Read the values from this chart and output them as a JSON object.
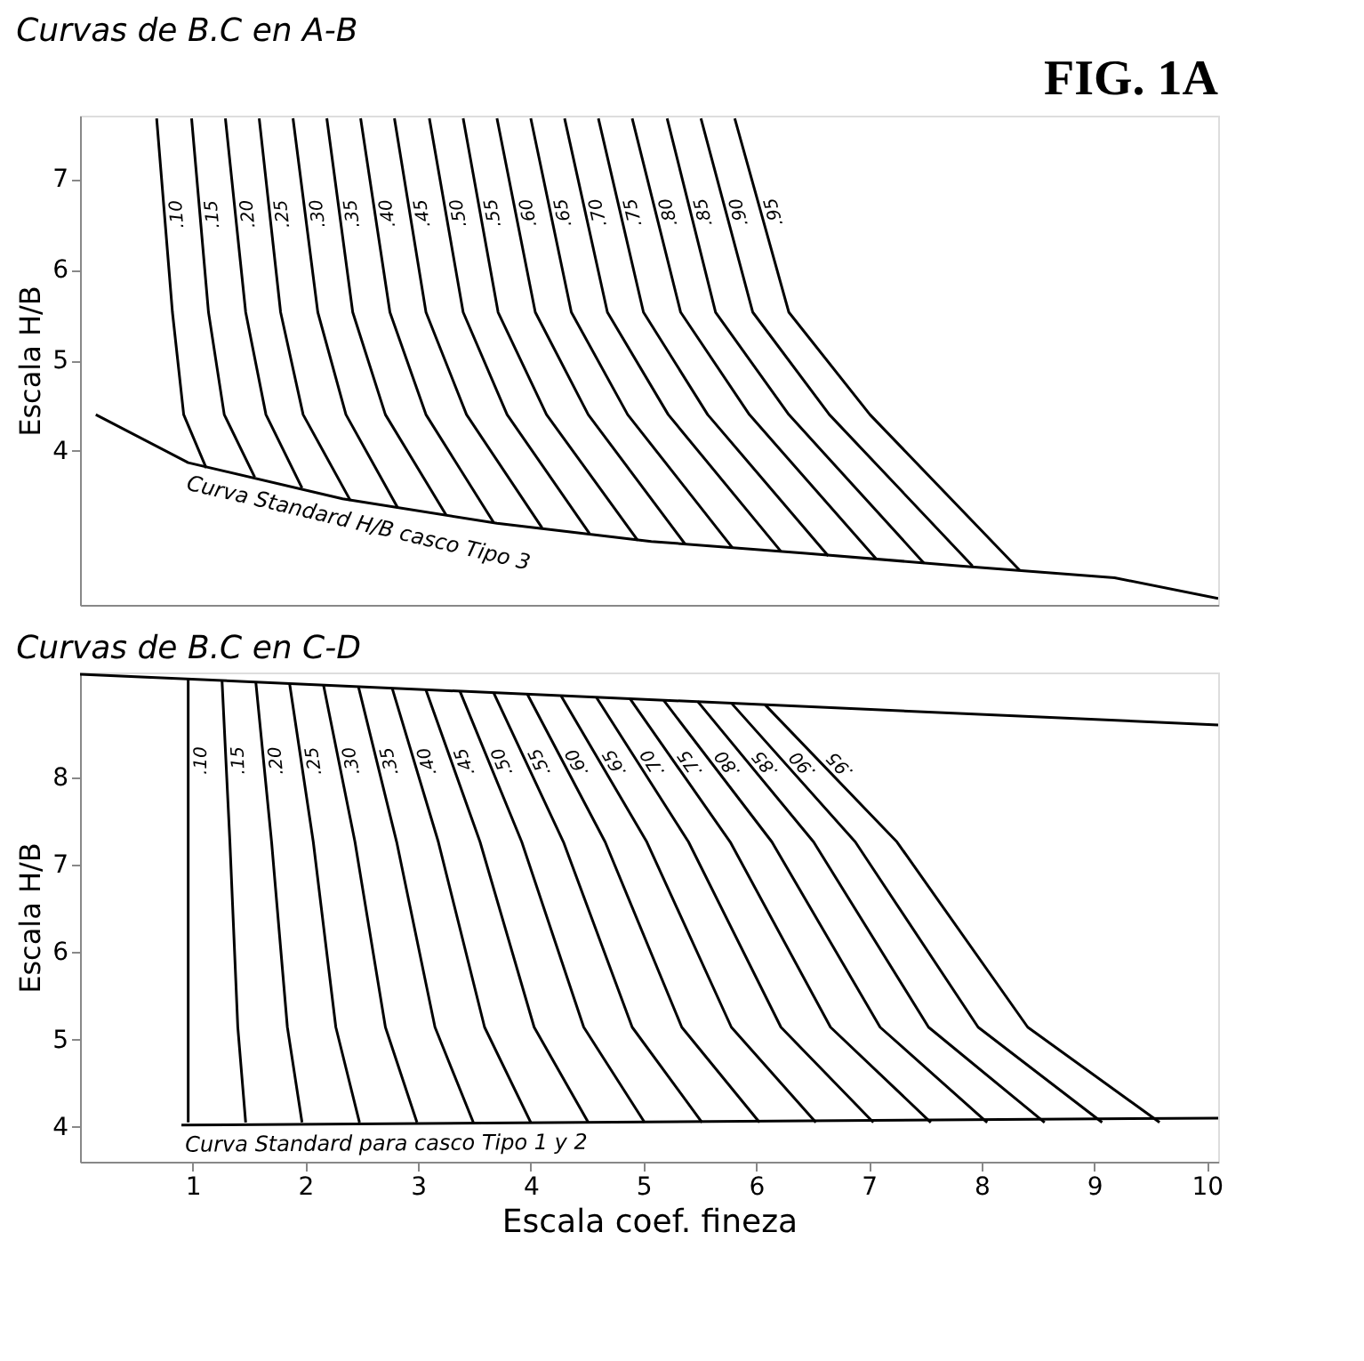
{
  "chart_data": [
    {
      "type": "line",
      "title": "Curvas de B.C en A-B",
      "ylabel": "Escala H/B",
      "annotations": [
        "FIG. 1A"
      ],
      "xlim": [
        0,
        10.1
      ],
      "ylim": [
        2.3,
        7.7
      ],
      "yticks": [
        4,
        5,
        6,
        7
      ],
      "tick_labels": "y",
      "grid": false,
      "legend": false,
      "marker": "none",
      "line_style": "solid",
      "series": [
        {
          "name": ".10",
          "color": "#000000",
          "x": [
            0.68,
            0.82,
            0.92,
            1.12
          ],
          "values": [
            7.67,
            5.53,
            4.4,
            3.81
          ]
        },
        {
          "name": ".15",
          "color": "#000000",
          "x": [
            0.99,
            1.14,
            1.28,
            1.55
          ],
          "values": [
            7.67,
            5.53,
            4.4,
            3.71
          ]
        },
        {
          "name": ".20",
          "color": "#000000",
          "x": [
            1.29,
            1.47,
            1.65,
            1.97
          ],
          "values": [
            7.67,
            5.53,
            4.4,
            3.59
          ]
        },
        {
          "name": ".25",
          "color": "#000000",
          "x": [
            1.59,
            1.78,
            1.98,
            2.4
          ],
          "values": [
            7.67,
            5.53,
            4.4,
            3.45
          ]
        },
        {
          "name": ".30",
          "color": "#000000",
          "x": [
            1.89,
            2.11,
            2.36,
            2.82
          ],
          "values": [
            7.67,
            5.53,
            4.4,
            3.37
          ]
        },
        {
          "name": ".35",
          "color": "#000000",
          "x": [
            2.19,
            2.42,
            2.71,
            3.25
          ],
          "values": [
            7.67,
            5.53,
            4.4,
            3.29
          ]
        },
        {
          "name": ".40",
          "color": "#000000",
          "x": [
            2.49,
            2.75,
            3.07,
            3.67
          ],
          "values": [
            7.67,
            5.53,
            4.4,
            3.21
          ]
        },
        {
          "name": ".45",
          "color": "#000000",
          "x": [
            2.79,
            3.07,
            3.43,
            4.1
          ],
          "values": [
            7.67,
            5.53,
            4.4,
            3.15
          ]
        },
        {
          "name": ".50",
          "color": "#000000",
          "x": [
            3.1,
            3.4,
            3.79,
            4.52
          ],
          "values": [
            7.67,
            5.53,
            4.4,
            3.09
          ]
        },
        {
          "name": ".55",
          "color": "#000000",
          "x": [
            3.4,
            3.71,
            4.14,
            4.95
          ],
          "values": [
            7.67,
            5.53,
            4.4,
            3.01
          ]
        },
        {
          "name": ".60",
          "color": "#000000",
          "x": [
            3.7,
            4.04,
            4.51,
            5.37
          ],
          "values": [
            7.67,
            5.53,
            4.4,
            2.97
          ]
        },
        {
          "name": ".65",
          "color": "#000000",
          "x": [
            4.0,
            4.36,
            4.86,
            5.79
          ],
          "values": [
            7.67,
            5.53,
            4.4,
            2.93
          ]
        },
        {
          "name": ".70",
          "color": "#000000",
          "x": [
            4.3,
            4.68,
            5.22,
            6.22
          ],
          "values": [
            7.67,
            5.53,
            4.4,
            2.89
          ]
        },
        {
          "name": ".75",
          "color": "#000000",
          "x": [
            4.6,
            5.0,
            5.57,
            6.64
          ],
          "values": [
            7.67,
            5.53,
            4.4,
            2.84
          ]
        },
        {
          "name": ".80",
          "color": "#000000",
          "x": [
            4.9,
            5.33,
            5.94,
            7.07
          ],
          "values": [
            7.67,
            5.53,
            4.4,
            2.8
          ]
        },
        {
          "name": ".85",
          "color": "#000000",
          "x": [
            5.21,
            5.64,
            6.29,
            7.49
          ],
          "values": [
            7.67,
            5.53,
            4.4,
            2.76
          ]
        },
        {
          "name": ".90",
          "color": "#000000",
          "x": [
            5.51,
            5.97,
            6.65,
            7.92
          ],
          "values": [
            7.67,
            5.53,
            4.4,
            2.73
          ]
        },
        {
          "name": ".95",
          "color": "#000000",
          "x": [
            5.81,
            6.29,
            7.01,
            8.34
          ],
          "values": [
            7.67,
            5.53,
            4.4,
            2.68
          ]
        },
        {
          "name": "Curva Standard H/B casco Tipo 3",
          "color": "#000000",
          "x": [
            0.14,
            0.96,
            2.33,
            3.7,
            5.07,
            6.44,
            7.81,
            9.18,
            10.1
          ],
          "values": [
            4.4,
            3.87,
            3.47,
            3.2,
            3.0,
            2.87,
            2.73,
            2.6,
            2.37
          ]
        }
      ]
    },
    {
      "type": "line",
      "title": "Curvas de B.C en C-D",
      "xlabel": "Escala coef. fineza",
      "ylabel": "Escala H/B",
      "xlim": [
        0,
        10.1
      ],
      "ylim": [
        3.6,
        9.2
      ],
      "xticks": [
        1,
        2,
        3,
        4,
        5,
        6,
        7,
        8,
        9,
        10
      ],
      "yticks": [
        4,
        5,
        6,
        7,
        8
      ],
      "grid": false,
      "legend": false,
      "marker": "none",
      "line_style": "solid",
      "series": [
        {
          "name": ".10",
          "color": "#000000",
          "x": [
            0.96,
            0.96,
            0.96,
            0.96
          ],
          "values": [
            9.12,
            7.26,
            5.14,
            4.05
          ]
        },
        {
          "name": ".15",
          "color": "#000000",
          "x": [
            1.26,
            1.33,
            1.4,
            1.47
          ],
          "values": [
            9.11,
            7.26,
            5.14,
            4.05
          ]
        },
        {
          "name": ".20",
          "color": "#000000",
          "x": [
            1.56,
            1.7,
            1.84,
            1.97
          ],
          "values": [
            9.09,
            7.26,
            5.14,
            4.05
          ]
        },
        {
          "name": ".25",
          "color": "#000000",
          "x": [
            1.86,
            2.07,
            2.27,
            2.48
          ],
          "values": [
            9.07,
            7.26,
            5.14,
            4.05
          ]
        },
        {
          "name": ".30",
          "color": "#000000",
          "x": [
            2.16,
            2.44,
            2.71,
            2.99
          ],
          "values": [
            9.06,
            7.26,
            5.14,
            4.05
          ]
        },
        {
          "name": ".35",
          "color": "#000000",
          "x": [
            2.47,
            2.81,
            3.15,
            3.49
          ],
          "values": [
            9.04,
            7.26,
            5.14,
            4.05
          ]
        },
        {
          "name": ".40",
          "color": "#000000",
          "x": [
            2.77,
            3.18,
            3.59,
            4.0
          ],
          "values": [
            9.02,
            7.26,
            5.14,
            4.05
          ]
        },
        {
          "name": ".45",
          "color": "#000000",
          "x": [
            3.07,
            3.55,
            4.03,
            4.51
          ],
          "values": [
            9.0,
            7.26,
            5.14,
            4.05
          ]
        },
        {
          "name": ".50",
          "color": "#000000",
          "x": [
            3.37,
            3.92,
            4.47,
            5.01
          ],
          "values": [
            8.99,
            7.26,
            5.14,
            4.05
          ]
        },
        {
          "name": ".55",
          "color": "#000000",
          "x": [
            3.67,
            4.29,
            4.9,
            5.52
          ],
          "values": [
            8.97,
            7.26,
            5.14,
            4.05
          ]
        },
        {
          "name": ".60",
          "color": "#000000",
          "x": [
            3.97,
            4.66,
            5.34,
            6.03
          ],
          "values": [
            8.95,
            7.26,
            5.14,
            4.05
          ]
        },
        {
          "name": ".65",
          "color": "#000000",
          "x": [
            4.27,
            5.03,
            5.78,
            6.53
          ],
          "values": [
            8.93,
            7.26,
            5.14,
            4.05
          ]
        },
        {
          "name": ".70",
          "color": "#000000",
          "x": [
            4.58,
            5.4,
            6.22,
            7.04
          ],
          "values": [
            8.92,
            7.26,
            5.14,
            4.05
          ]
        },
        {
          "name": ".75",
          "color": "#000000",
          "x": [
            4.88,
            5.77,
            6.66,
            7.55
          ],
          "values": [
            8.9,
            7.26,
            5.14,
            4.05
          ]
        },
        {
          "name": ".80",
          "color": "#000000",
          "x": [
            5.18,
            6.14,
            7.1,
            8.05
          ],
          "values": [
            8.88,
            7.26,
            5.14,
            4.05
          ]
        },
        {
          "name": ".85",
          "color": "#000000",
          "x": [
            5.48,
            6.51,
            7.53,
            8.56
          ],
          "values": [
            8.87,
            7.26,
            5.14,
            4.05
          ]
        },
        {
          "name": ".90",
          "color": "#000000",
          "x": [
            5.78,
            6.88,
            7.97,
            9.07
          ],
          "values": [
            8.85,
            7.26,
            5.14,
            4.05
          ]
        },
        {
          "name": ".95",
          "color": "#000000",
          "x": [
            6.08,
            7.25,
            8.41,
            9.58
          ],
          "values": [
            8.83,
            7.26,
            5.14,
            4.05
          ]
        },
        {
          "color": "#000000",
          "x": [
            0.0,
            10.1
          ],
          "values": [
            9.18,
            8.6
          ]
        },
        {
          "name": "Curva Standard para casco Tipo 1 y 2",
          "color": "#000000",
          "x": [
            0.9,
            10.1
          ],
          "values": [
            4.02,
            4.1
          ]
        }
      ]
    }
  ]
}
